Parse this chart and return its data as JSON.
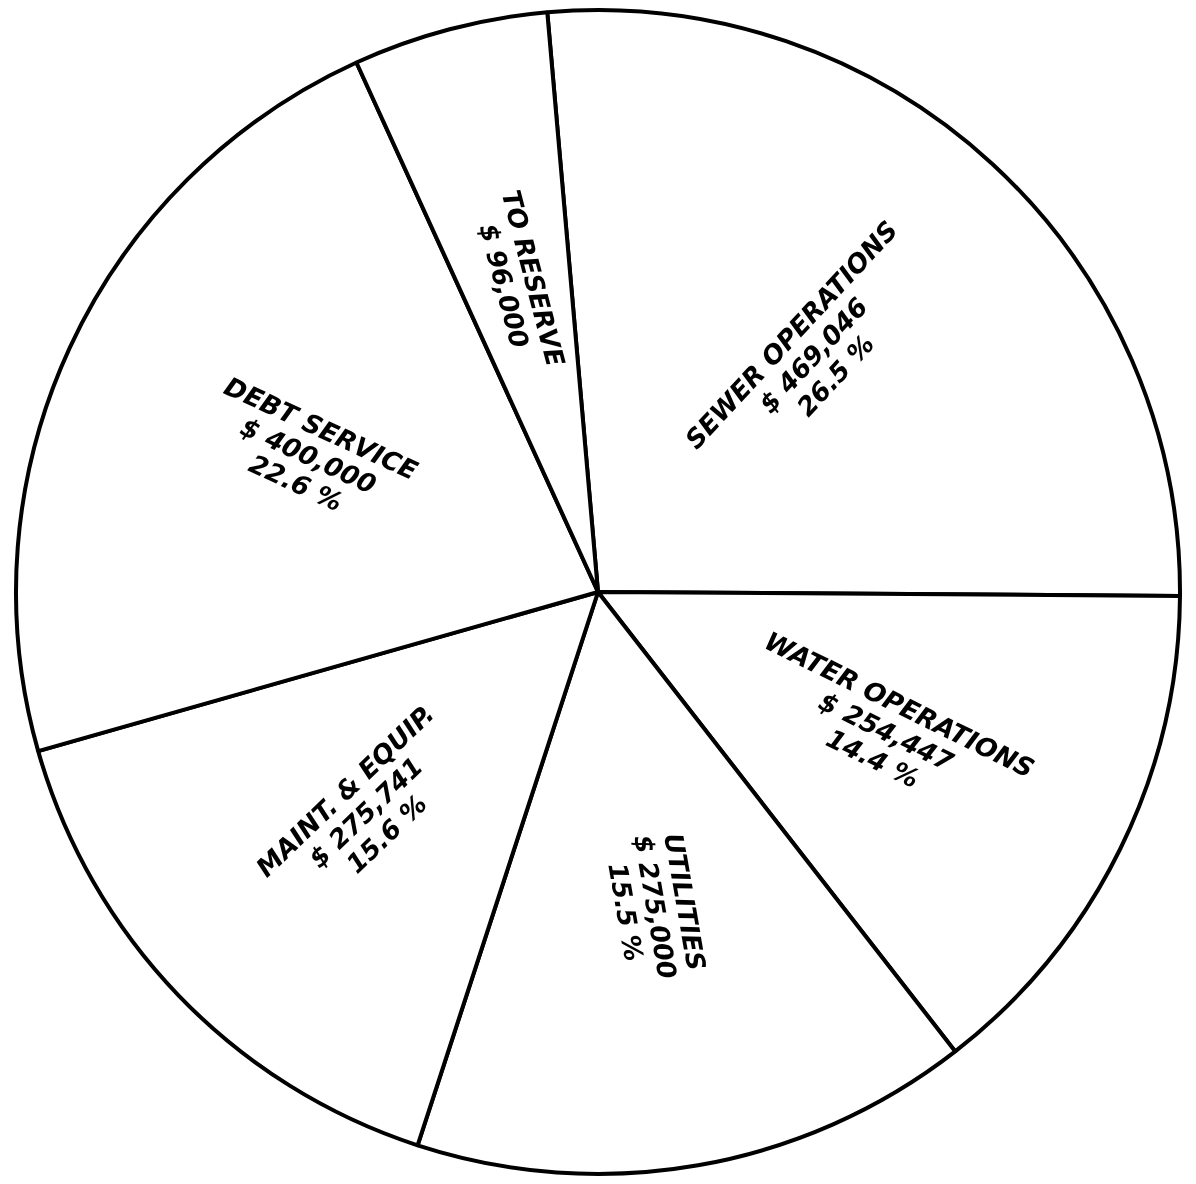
{
  "chart_data": {
    "type": "pie",
    "categories": [
      "SEWER OPERATIONS",
      "WATER OPERATIONS",
      "UTILITIES",
      "MAINT. & EQUIP.",
      "DEBT SERVICE",
      "TO RESERVE"
    ],
    "values": [
      469046,
      254447,
      275000,
      275741,
      400000,
      96000
    ],
    "value_labels": [
      "$ 469,046\n26.5 %",
      "$ 254,447\n14.4 %",
      "$ 275,000\n15.5 %",
      "$ 275,741\n15.6 %",
      "$ 400,000\n22.6 %",
      "$ 96,000"
    ],
    "colors": [
      "#ffffff",
      "#ffffff",
      "#ffffff",
      "#ffffff",
      "#ffffff",
      "#ffffff"
    ],
    "legend": false
  }
}
